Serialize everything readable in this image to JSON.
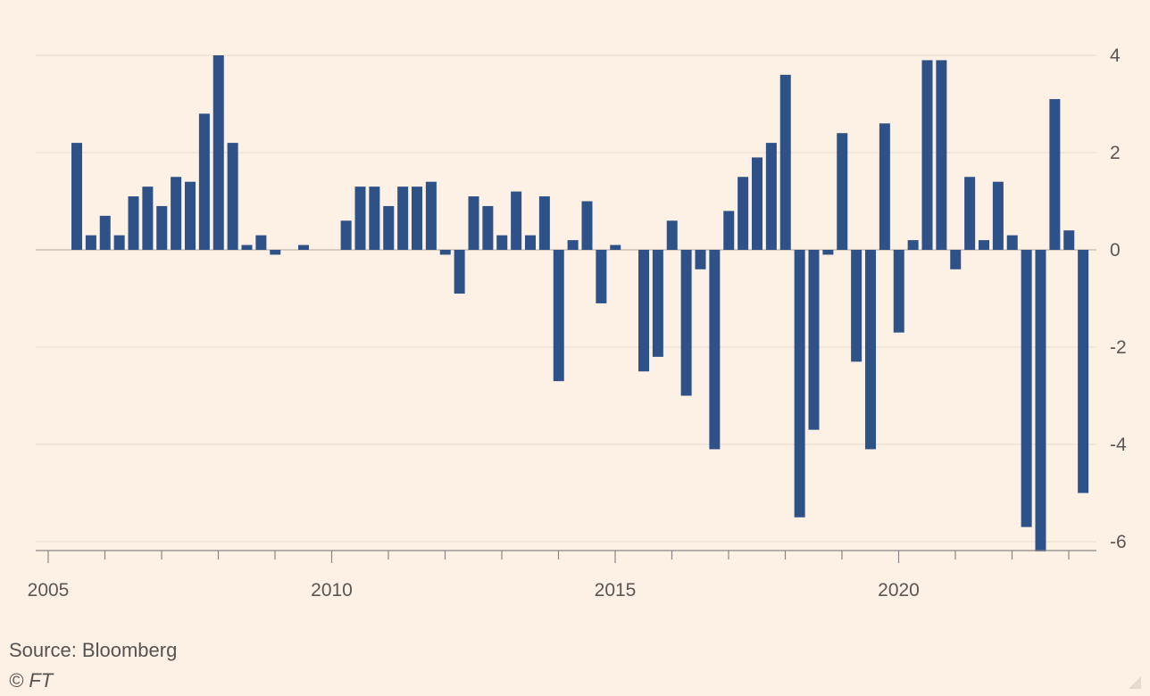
{
  "chart_data": {
    "type": "bar",
    "title": "",
    "xlabel": "",
    "ylabel": "",
    "ylim": [
      -6.2,
      4
    ],
    "yticks": [
      4,
      2,
      0,
      -2,
      -4,
      -6
    ],
    "ytick_labels": [
      "4",
      "2",
      "0",
      "-2",
      "-4",
      "-6"
    ],
    "xtick_years": [
      2005,
      2010,
      2015,
      2020
    ],
    "xtick_labels": [
      "2005",
      "2010",
      "2015",
      "2020"
    ],
    "minor_xtick_years": [
      2005,
      2006,
      2007,
      2008,
      2009,
      2010,
      2011,
      2012,
      2013,
      2014,
      2015,
      2016,
      2017,
      2018,
      2019,
      2020,
      2021,
      2022,
      2023
    ],
    "first_bar_period": "2005 Q3",
    "frequency": "quarterly",
    "values": [
      2.2,
      0.3,
      0.7,
      0.3,
      1.1,
      1.3,
      0.9,
      1.5,
      1.4,
      2.8,
      4.0,
      2.2,
      0.1,
      0.3,
      -0.1,
      0.0,
      0.1,
      0.0,
      0.0,
      0.6,
      1.3,
      1.3,
      0.9,
      1.3,
      1.3,
      1.4,
      -0.1,
      -0.9,
      1.1,
      0.9,
      0.3,
      1.2,
      0.3,
      1.1,
      -2.7,
      0.2,
      1.0,
      -1.1,
      0.1,
      0.0,
      -2.5,
      -2.2,
      0.6,
      -3.0,
      -0.4,
      -4.1,
      0.8,
      1.5,
      1.9,
      2.2,
      3.6,
      -5.5,
      -3.7,
      -0.1,
      2.4,
      -2.3,
      -4.1,
      2.6,
      -1.7,
      0.2,
      3.9,
      3.9,
      -0.4,
      1.5,
      0.2,
      1.4,
      0.3,
      -5.7,
      -6.2,
      3.1,
      0.4,
      -5.0
    ],
    "bar_color": "#2e5288",
    "grid": true
  },
  "footer": {
    "source": "Source: Bloomberg",
    "copyright": "© FT"
  },
  "colors": {
    "background": "#fdf1e6",
    "gridline": "#ece0d4",
    "zero_line": "#c9bfb5",
    "axis": "#8a8582",
    "bar": "#2e5288"
  }
}
